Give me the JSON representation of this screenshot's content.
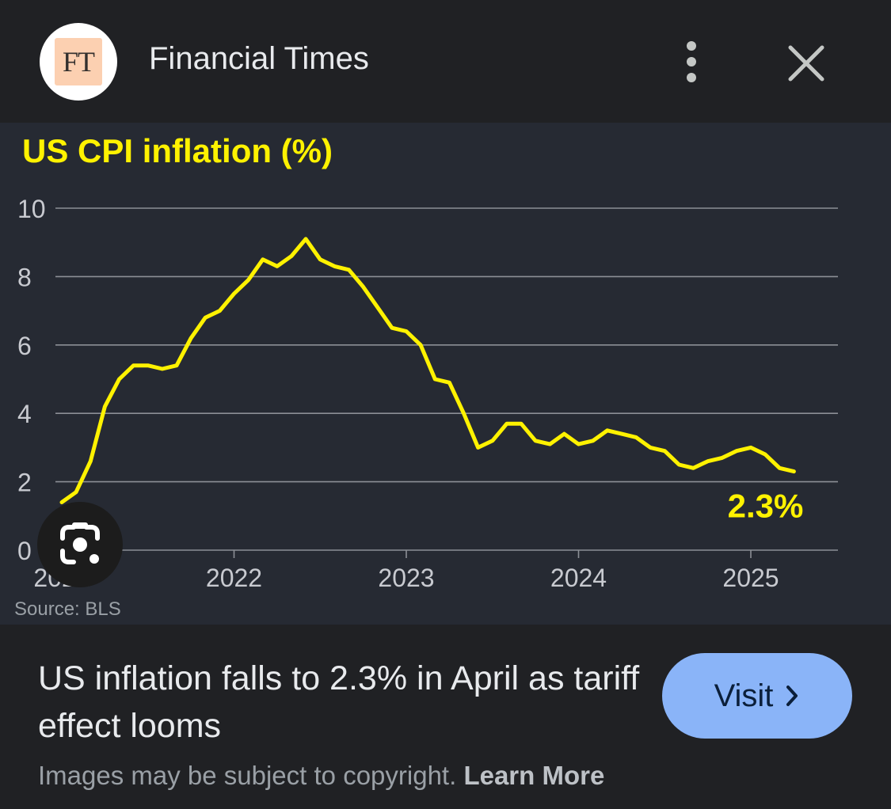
{
  "header": {
    "logo_text": "FT",
    "source_name": "Financial Times",
    "more_icon": "more-vert-icon",
    "close_icon": "close-icon"
  },
  "chart_data": {
    "type": "line",
    "title": "US CPI inflation (%)",
    "xlabel": "",
    "ylabel": "",
    "ylim": [
      0,
      10
    ],
    "yticks": [
      "0",
      "2",
      "4",
      "6",
      "8",
      "10"
    ],
    "xticks": [
      "2021",
      "2022",
      "2023",
      "2024",
      "2025"
    ],
    "grid": true,
    "line_color": "#fff200",
    "annotation": "2.3%",
    "source": "Source: BLS",
    "x": [
      "2021-01",
      "2021-02",
      "2021-03",
      "2021-04",
      "2021-05",
      "2021-06",
      "2021-07",
      "2021-08",
      "2021-09",
      "2021-10",
      "2021-11",
      "2021-12",
      "2022-01",
      "2022-02",
      "2022-03",
      "2022-04",
      "2022-05",
      "2022-06",
      "2022-07",
      "2022-08",
      "2022-09",
      "2022-10",
      "2022-11",
      "2022-12",
      "2023-01",
      "2023-02",
      "2023-03",
      "2023-04",
      "2023-05",
      "2023-06",
      "2023-07",
      "2023-08",
      "2023-09",
      "2023-10",
      "2023-11",
      "2023-12",
      "2024-01",
      "2024-02",
      "2024-03",
      "2024-04",
      "2024-05",
      "2024-06",
      "2024-07",
      "2024-08",
      "2024-09",
      "2024-10",
      "2024-11",
      "2024-12",
      "2025-01",
      "2025-02",
      "2025-03",
      "2025-04"
    ],
    "values": [
      1.4,
      1.7,
      2.6,
      4.2,
      5.0,
      5.4,
      5.4,
      5.3,
      5.4,
      6.2,
      6.8,
      7.0,
      7.5,
      7.9,
      8.5,
      8.3,
      8.6,
      9.1,
      8.5,
      8.3,
      8.2,
      7.7,
      7.1,
      6.5,
      6.4,
      6.0,
      5.0,
      4.9,
      4.0,
      3.0,
      3.2,
      3.7,
      3.7,
      3.2,
      3.1,
      3.4,
      3.1,
      3.2,
      3.5,
      3.4,
      3.3,
      3.0,
      2.9,
      2.5,
      2.4,
      2.6,
      2.7,
      2.9,
      3.0,
      2.8,
      2.4,
      2.3
    ]
  },
  "lens": {
    "icon": "google-lens-icon"
  },
  "footer": {
    "headline": "US inflation falls to 2.3% in April as tariff effect looms",
    "visit_label": "Visit",
    "visit_icon": "chevron-right-icon",
    "copyright_text": "Images may be subject to copyright.",
    "learn_more": "Learn More",
    "accent_color": "#8ab4f8"
  }
}
